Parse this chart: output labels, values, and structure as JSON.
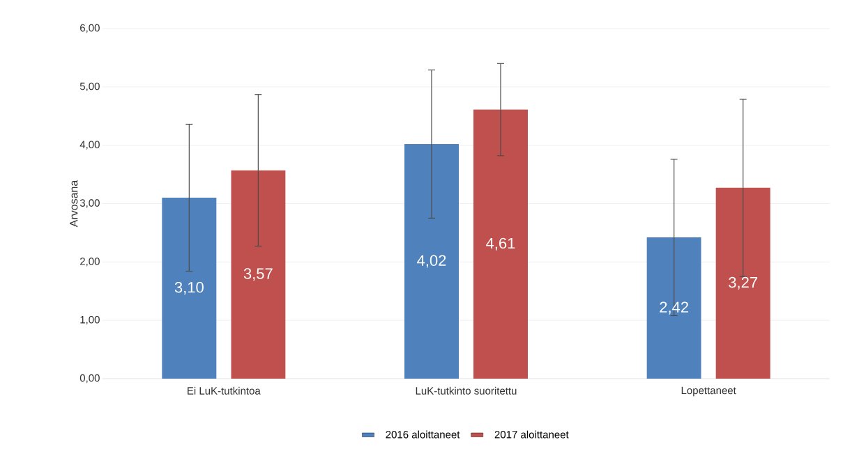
{
  "chart_data": {
    "type": "bar",
    "ylabel": "Arvosana",
    "categories": [
      "Ei LuK-tutkintoa",
      "LuK-tutkinto suoritettu",
      "Lopettaneet"
    ],
    "series": [
      {
        "name": "2016 aloittaneet",
        "color": "#4f81bd",
        "values": [
          3.1,
          4.02,
          2.42
        ],
        "errors": [
          1.26,
          1.27,
          1.34
        ],
        "value_labels": [
          "3,10",
          "4,02",
          "2,42"
        ]
      },
      {
        "name": "2017 aloittaneet",
        "color": "#c0504d",
        "values": [
          3.57,
          4.61,
          3.27
        ],
        "errors": [
          1.3,
          0.79,
          1.52
        ],
        "value_labels": [
          "3,57",
          "4,61",
          "3,27"
        ]
      }
    ],
    "ylim": [
      0,
      6
    ],
    "yticks": [
      {
        "value": 0,
        "label": "0,00"
      },
      {
        "value": 1,
        "label": "1,00"
      },
      {
        "value": 2,
        "label": "2,00"
      },
      {
        "value": 3,
        "label": "3,00"
      },
      {
        "value": 4,
        "label": "4,00"
      },
      {
        "value": 5,
        "label": "5,00"
      },
      {
        "value": 6,
        "label": "6,00"
      }
    ],
    "grid": "y",
    "legend": "bottom"
  }
}
